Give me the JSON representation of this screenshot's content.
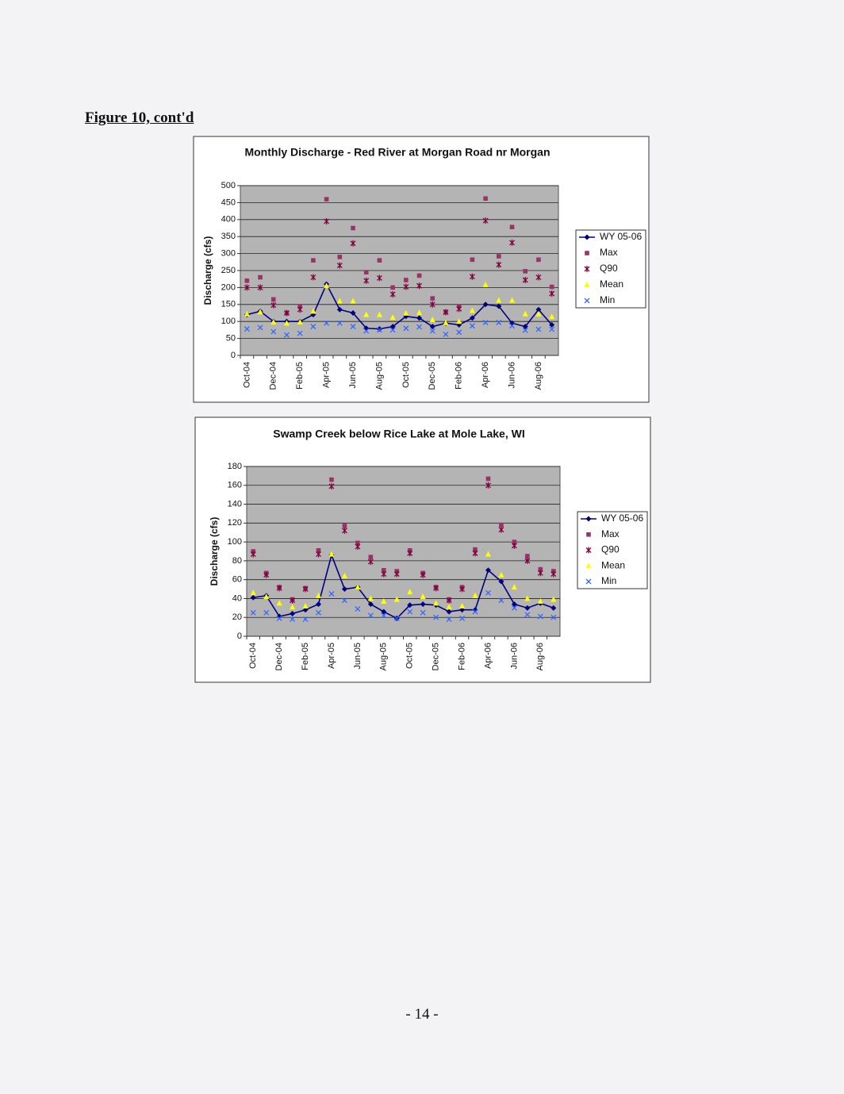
{
  "header": "Figure 10, cont'd",
  "footer": "- 14 -",
  "chart_data": [
    {
      "type": "line",
      "title": "Monthly Discharge - Red River at Morgan Road nr Morgan",
      "y_label": "Discharge (cfs)",
      "categories": [
        "Oct-04",
        null,
        "Dec-04",
        null,
        "Feb-05",
        null,
        "Apr-05",
        null,
        "Jun-05",
        null,
        "Aug-05",
        null,
        "Oct-05",
        null,
        "Dec-05",
        null,
        "Feb-06",
        null,
        "Apr-06",
        null,
        "Jun-06",
        null,
        "Aug-06",
        null
      ],
      "ylim": [
        0,
        500
      ],
      "yticks": [
        0,
        50,
        100,
        150,
        200,
        250,
        300,
        350,
        400,
        450,
        500
      ],
      "grid": true,
      "legend": "right",
      "plot_color": "#b4b4b4",
      "series": [
        {
          "name": "WY 05-06",
          "color": "#000080",
          "marker": "diamond",
          "line": true,
          "values": [
            120,
            130,
            100,
            100,
            100,
            120,
            210,
            135,
            125,
            80,
            78,
            85,
            115,
            110,
            85,
            95,
            90,
            110,
            150,
            145,
            95,
            85,
            135,
            90
          ]
        },
        {
          "name": "Max",
          "color": "#993366",
          "marker": "square",
          "line": false,
          "values": [
            220,
            230,
            165,
            125,
            145,
            280,
            460,
            290,
            375,
            245,
            280,
            200,
            222,
            235,
            168,
            128,
            145,
            282,
            462,
            292,
            378,
            248,
            282,
            202
          ]
        },
        {
          "name": "Q90",
          "color": "#800040",
          "marker": "star",
          "line": false,
          "values": [
            200,
            200,
            148,
            125,
            135,
            230,
            395,
            265,
            330,
            220,
            228,
            180,
            202,
            205,
            150,
            127,
            137,
            232,
            397,
            267,
            332,
            222,
            230,
            182
          ]
        },
        {
          "name": "Mean",
          "color": "#ffff00",
          "marker": "triangle",
          "line": false,
          "values": [
            122,
            128,
            98,
            95,
            98,
            130,
            205,
            160,
            160,
            120,
            120,
            112,
            124,
            126,
            105,
            96,
            100,
            132,
            208,
            162,
            162,
            122,
            122,
            114
          ]
        },
        {
          "name": "Min",
          "color": "#3366ff",
          "marker": "x",
          "line": false,
          "values": [
            78,
            82,
            70,
            60,
            65,
            85,
            95,
            95,
            85,
            72,
            75,
            75,
            80,
            84,
            72,
            62,
            68,
            87,
            97,
            97,
            87,
            74,
            77,
            77
          ]
        }
      ]
    },
    {
      "type": "line",
      "title": "Swamp Creek below Rice Lake at Mole Lake, WI",
      "y_label": "Discharge (cfs)",
      "categories": [
        "Oct-04",
        null,
        "Dec-04",
        null,
        "Feb-05",
        null,
        "Apr-05",
        null,
        "Jun-05",
        null,
        "Aug-05",
        null,
        "Oct-05",
        null,
        "Dec-05",
        null,
        "Feb-06",
        null,
        "Apr-06",
        null,
        "Jun-06",
        null,
        "Aug-06",
        null
      ],
      "ylim": [
        0,
        180
      ],
      "yticks": [
        0,
        20,
        40,
        60,
        80,
        100,
        120,
        140,
        160,
        180
      ],
      "grid": true,
      "legend": "right",
      "plot_color": "#b4b4b4",
      "series": [
        {
          "name": "WY 05-06",
          "color": "#000080",
          "marker": "diamond",
          "line": true,
          "values": [
            41,
            43,
            21,
            24,
            28,
            34,
            86,
            50,
            52,
            34,
            26,
            19,
            33,
            34,
            33,
            26,
            28,
            28,
            70,
            58,
            34,
            30,
            35,
            30
          ]
        },
        {
          "name": "Max",
          "color": "#993366",
          "marker": "square",
          "line": false,
          "values": [
            90,
            67,
            52,
            39,
            51,
            91,
            166,
            117,
            99,
            84,
            70,
            69,
            91,
            67,
            52,
            39,
            52,
            92,
            167,
            118,
            100,
            85,
            71,
            69
          ]
        },
        {
          "name": "Q90",
          "color": "#800040",
          "marker": "star",
          "line": false,
          "values": [
            87,
            65,
            51,
            38,
            50,
            87,
            159,
            112,
            95,
            79,
            66,
            66,
            88,
            65,
            51,
            38,
            50,
            88,
            160,
            113,
            96,
            80,
            67,
            66
          ]
        },
        {
          "name": "Mean",
          "color": "#ffff00",
          "marker": "triangle",
          "line": false,
          "values": [
            46,
            42,
            35,
            31,
            32,
            43,
            87,
            64,
            52,
            40,
            37,
            39,
            47,
            42,
            35,
            31,
            32,
            43,
            87,
            65,
            52,
            40,
            37,
            39
          ]
        },
        {
          "name": "Min",
          "color": "#3366ff",
          "marker": "x",
          "line": false,
          "values": [
            25,
            25,
            19,
            18,
            18,
            25,
            45,
            38,
            29,
            22,
            22,
            19,
            26,
            25,
            20,
            18,
            19,
            26,
            46,
            38,
            30,
            23,
            21,
            20
          ]
        }
      ]
    }
  ]
}
